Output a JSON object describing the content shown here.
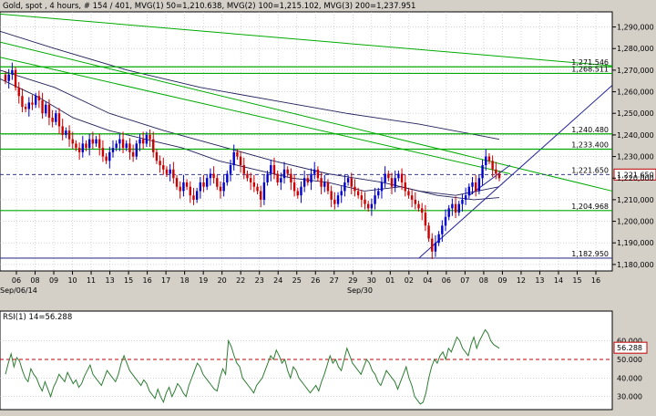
{
  "header": {
    "title": "Gold, spot , 4 hours, # 154 / 401, MVG(1) 50=1,210.638, MVG(2) 100=1,215.102, MVG(3) 200=1,237.951"
  },
  "rsi": {
    "label": "RSI(1) 14=56.288",
    "current_label": "56.288",
    "current": 56.288,
    "levels": [
      60,
      50,
      40,
      30
    ],
    "level_labels": [
      "60.000",
      "50.000",
      "40.000",
      "30.000"
    ],
    "ref_level": 50,
    "ylim": [
      23,
      76
    ],
    "values": [
      42,
      48,
      53,
      46,
      51,
      49,
      44,
      40,
      38,
      45,
      42,
      40,
      36,
      33,
      38,
      34,
      30,
      35,
      38,
      42,
      40,
      38,
      43,
      40,
      37,
      39,
      35,
      37,
      41,
      44,
      47,
      42,
      40,
      38,
      36,
      40,
      44,
      42,
      40,
      38,
      42,
      48,
      52,
      48,
      44,
      42,
      40,
      38,
      36,
      39,
      37,
      33,
      31,
      29,
      34,
      30,
      27,
      32,
      35,
      30,
      33,
      37,
      35,
      32,
      30,
      36,
      40,
      44,
      48,
      46,
      42,
      40,
      38,
      36,
      34,
      33,
      40,
      45,
      42,
      60,
      57,
      52,
      48,
      46,
      40,
      38,
      36,
      34,
      32,
      36,
      38,
      40,
      44,
      48,
      52,
      50,
      55,
      52,
      48,
      50,
      44,
      40,
      46,
      44,
      40,
      38,
      36,
      34,
      32,
      34,
      36,
      33,
      38,
      42,
      47,
      52,
      48,
      50,
      46,
      44,
      50,
      56,
      52,
      48,
      46,
      44,
      42,
      46,
      50,
      48,
      44,
      42,
      38,
      36,
      40,
      44,
      42,
      40,
      38,
      34,
      38,
      42,
      46,
      40,
      36,
      30,
      28,
      26,
      27,
      32,
      40,
      46,
      50,
      48,
      52,
      54,
      50,
      56,
      54,
      58,
      62,
      60,
      56,
      54,
      52,
      58,
      62,
      56,
      60,
      63,
      66,
      64,
      60,
      58,
      57,
      56
    ]
  },
  "chart_data": {
    "type": "candlestick",
    "title": "Gold, spot , 4 hours, # 154 / 401",
    "ylim": [
      1177,
      1297
    ],
    "y_ticks": [
      1180,
      1190,
      1200,
      1210,
      1220,
      1230,
      1240,
      1250,
      1260,
      1270,
      1280,
      1290
    ],
    "y_tick_labels": [
      "1,180,000",
      "1,190,000",
      "1,200,000",
      "1,210,000",
      "1,220,000",
      "1,230,000",
      "1,240,000",
      "1,250,000",
      "1,260,000",
      "1,270,000",
      "1,280,000",
      "1,290,000"
    ],
    "x_tick_labels": [
      "06",
      "08",
      "09",
      "10",
      "11",
      "13",
      "15",
      "16",
      "17",
      "18",
      "19",
      "20",
      "22",
      "23",
      "24",
      "25",
      "26",
      "27",
      "29",
      "30",
      "01",
      "02",
      "04",
      "06",
      "07",
      "08",
      "09",
      "12",
      "13",
      "14",
      "15",
      "16"
    ],
    "x_sub_labels": [
      "Sep/06/14",
      "Sep/30"
    ],
    "close_series": [
      1265,
      1268,
      1270,
      1262,
      1258,
      1253,
      1252,
      1255,
      1254,
      1258,
      1256,
      1250,
      1254,
      1248,
      1246,
      1250,
      1244,
      1240,
      1242,
      1238,
      1236,
      1234,
      1232,
      1236,
      1234,
      1238,
      1236,
      1238,
      1234,
      1230,
      1228,
      1232,
      1234,
      1236,
      1238,
      1234,
      1236,
      1232,
      1230,
      1236,
      1238,
      1236,
      1240,
      1238,
      1232,
      1228,
      1226,
      1224,
      1222,
      1224,
      1220,
      1216,
      1214,
      1218,
      1216,
      1212,
      1210,
      1214,
      1218,
      1216,
      1220,
      1222,
      1220,
      1216,
      1214,
      1218,
      1222,
      1226,
      1232,
      1230,
      1226,
      1222,
      1220,
      1218,
      1216,
      1214,
      1210,
      1218,
      1222,
      1226,
      1222,
      1218,
      1220,
      1224,
      1222,
      1218,
      1214,
      1212,
      1216,
      1220,
      1218,
      1222,
      1224,
      1220,
      1216,
      1218,
      1214,
      1210,
      1208,
      1212,
      1214,
      1218,
      1220,
      1216,
      1214,
      1212,
      1210,
      1208,
      1206,
      1208,
      1212,
      1214,
      1218,
      1222,
      1220,
      1216,
      1220,
      1222,
      1218,
      1214,
      1212,
      1210,
      1208,
      1206,
      1204,
      1198,
      1192,
      1186,
      1190,
      1194,
      1198,
      1202,
      1206,
      1208,
      1204,
      1208,
      1210,
      1212,
      1216,
      1218,
      1214,
      1220,
      1226,
      1230,
      1228,
      1224,
      1222,
      1220
    ],
    "price_levels": [
      1271.546,
      1268.511,
      1240.48,
      1233.4,
      1221.65,
      1204.968,
      1182.95
    ],
    "price_level_labels": [
      "1,271.546",
      "1,268.511",
      "1,240.480",
      "1,233.400",
      "1,221.650",
      "1,204.968",
      "1,182.950"
    ],
    "current_price": 1221.65,
    "current_price_label": "1,221.650",
    "moving_averages": [
      {
        "name": "MVG(1) 50",
        "value": 1210.638
      },
      {
        "name": "MVG(2) 100",
        "value": 1215.102
      },
      {
        "name": "MVG(3) 200",
        "value": 1237.951
      }
    ],
    "grid": true
  },
  "colors": {
    "bull": "#0000cc",
    "bear": "#cc0000",
    "trendline": "#00aa00",
    "channel": "#22229a",
    "ma": "#20205a",
    "rsi": "#2e7d32",
    "ref": "#c00000",
    "grid": "#b8b8c8",
    "current_label_box": "#c00000"
  }
}
